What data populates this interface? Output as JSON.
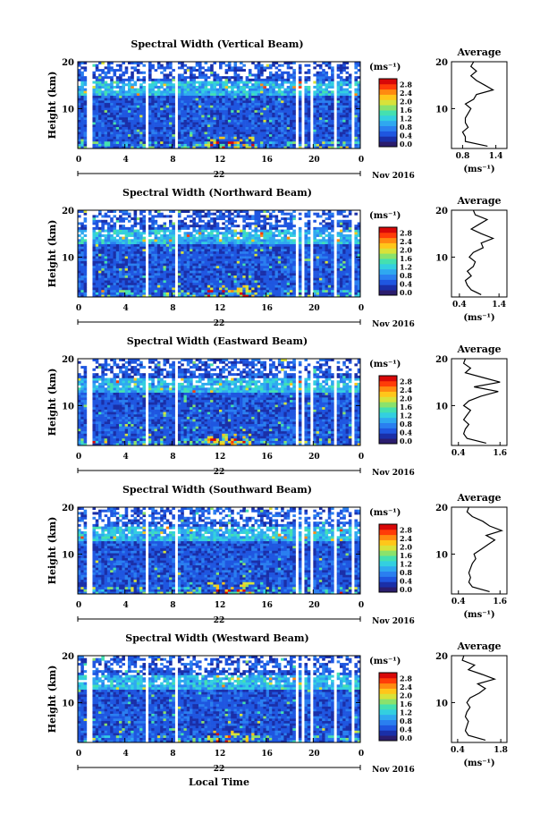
{
  "colors": {
    "background": "#ffffff",
    "colormap": [
      "#2b1d6e",
      "#1a2fa8",
      "#1f56e0",
      "#2a7ff0",
      "#2fa8f0",
      "#33cfe0",
      "#44e0b0",
      "#8ae26c",
      "#d8e23a",
      "#ffc61a",
      "#ff8a10",
      "#ff3c08",
      "#d80808"
    ]
  },
  "page": {
    "shared_x_label": "Local Time"
  },
  "chart_data": [
    {
      "type": "heatmap",
      "title": "Spectral Width (Vertical Beam)",
      "ylabel": "Height (km)",
      "xlabel": "22",
      "x_ticks": [
        "0",
        "4",
        "8",
        "12",
        "16",
        "20",
        "0"
      ],
      "y_ticks": [
        "20",
        "10"
      ],
      "xlim": [
        0,
        24
      ],
      "ylim": [
        1.5,
        20
      ],
      "date_label": "Nov 2016",
      "colorbar": {
        "unit": "(ms⁻¹)",
        "ticks": [
          "2.8",
          "2.4",
          "2.0",
          "1.6",
          "1.2",
          "0.8",
          "0.4",
          "0.0"
        ],
        "range": [
          0,
          3.2
        ]
      },
      "profile": {
        "title": "Average",
        "xlabel": "(ms⁻¹)",
        "x_ticks": [
          "0.8",
          "1.4"
        ],
        "xlim": [
          0.6,
          1.6
        ],
        "y_ticks": [
          "20",
          "10"
        ],
        "heights": [
          2,
          3,
          4,
          5,
          6,
          7,
          8,
          9,
          10,
          11,
          12,
          13,
          14,
          15,
          16,
          17,
          18,
          19,
          20
        ],
        "values": [
          1.25,
          0.85,
          0.85,
          0.8,
          0.9,
          0.85,
          0.85,
          0.9,
          0.95,
          0.85,
          1.0,
          1.05,
          1.35,
          1.2,
          1.05,
          0.95,
          1.05,
          0.95,
          1.0
        ]
      }
    },
    {
      "type": "heatmap",
      "title": "Spectral Width (Northward Beam)",
      "ylabel": "Height (km)",
      "xlabel": "22",
      "x_ticks": [
        "0",
        "4",
        "8",
        "12",
        "16",
        "20",
        "0"
      ],
      "y_ticks": [
        "20",
        "10"
      ],
      "xlim": [
        0,
        24
      ],
      "ylim": [
        1.5,
        20
      ],
      "date_label": "Nov 2016",
      "colorbar": {
        "unit": "(ms⁻¹)",
        "ticks": [
          "2.8",
          "2.4",
          "2.0",
          "1.6",
          "1.2",
          "0.8",
          "0.4",
          "0.0"
        ],
        "range": [
          0,
          3.2
        ]
      },
      "profile": {
        "title": "Average",
        "xlabel": "(ms⁻¹)",
        "x_ticks": [
          "0.4",
          "1.4"
        ],
        "xlim": [
          0.2,
          1.6
        ],
        "y_ticks": [
          "20",
          "10"
        ],
        "heights": [
          2,
          3,
          4,
          5,
          6,
          7,
          8,
          9,
          10,
          11,
          12,
          13,
          14,
          15,
          16,
          17,
          18,
          19,
          20
        ],
        "values": [
          0.95,
          0.7,
          0.6,
          0.55,
          0.7,
          0.6,
          0.75,
          0.8,
          0.65,
          0.75,
          1.0,
          0.95,
          1.25,
          0.95,
          0.7,
          0.9,
          1.1,
          0.8,
          0.75
        ]
      }
    },
    {
      "type": "heatmap",
      "title": "Spectral Width (Eastward Beam)",
      "ylabel": "Height (km)",
      "xlabel": "22",
      "x_ticks": [
        "0",
        "4",
        "8",
        "12",
        "16",
        "20",
        "0"
      ],
      "y_ticks": [
        "20",
        "10"
      ],
      "xlim": [
        0,
        24
      ],
      "ylim": [
        1.5,
        20
      ],
      "date_label": "Nov 2016",
      "colorbar": {
        "unit": "(ms⁻¹)",
        "ticks": [
          "2.8",
          "2.4",
          "2.0",
          "1.6",
          "1.2",
          "0.8",
          "0.4",
          "0.0"
        ],
        "range": [
          0,
          3.2
        ]
      },
      "profile": {
        "title": "Average",
        "xlabel": "",
        "x_ticks": [
          "0.4",
          "1.6"
        ],
        "xlim": [
          0.2,
          1.8
        ],
        "y_ticks": [
          "20",
          "10"
        ],
        "heights": [
          2,
          3,
          4,
          5,
          6,
          7,
          8,
          9,
          10,
          11,
          12,
          13,
          14,
          15,
          16,
          17,
          18,
          19,
          20
        ],
        "values": [
          1.2,
          0.65,
          0.55,
          0.6,
          0.7,
          0.55,
          0.65,
          0.75,
          0.55,
          0.7,
          1.05,
          1.55,
          0.85,
          1.6,
          1.1,
          0.6,
          0.75,
          0.55,
          0.6
        ]
      }
    },
    {
      "type": "heatmap",
      "title": "Spectral Width (Southward Beam)",
      "ylabel": "Height (km)",
      "xlabel": "22",
      "x_ticks": [
        "0",
        "4",
        "8",
        "12",
        "16",
        "20",
        "0"
      ],
      "y_ticks": [
        "20",
        "10"
      ],
      "xlim": [
        0,
        24
      ],
      "ylim": [
        1.5,
        20
      ],
      "date_label": "Nov 2016",
      "colorbar": {
        "unit": "(ms⁻¹)",
        "ticks": [
          "2.8",
          "2.4",
          "2.0",
          "1.6",
          "1.2",
          "0.8",
          "0.4",
          "0.0"
        ],
        "range": [
          0,
          3.2
        ]
      },
      "profile": {
        "title": "Average",
        "xlabel": "(ms⁻¹)",
        "x_ticks": [
          "0.4",
          "1.6"
        ],
        "xlim": [
          0.2,
          1.8
        ],
        "y_ticks": [
          "20",
          "10"
        ],
        "heights": [
          2,
          3,
          4,
          5,
          6,
          7,
          8,
          9,
          10,
          11,
          12,
          13,
          14,
          15,
          16,
          17,
          18,
          19,
          20
        ],
        "values": [
          1.3,
          0.8,
          0.7,
          0.75,
          0.7,
          0.75,
          0.8,
          0.9,
          0.85,
          1.05,
          1.25,
          1.45,
          1.2,
          1.65,
          1.3,
          1.1,
          0.8,
          0.65,
          0.7
        ]
      }
    },
    {
      "type": "heatmap",
      "title": "Spectral Width (Westward Beam)",
      "ylabel": "Height (km)",
      "xlabel": "22",
      "x_ticks": [
        "0",
        "4",
        "8",
        "12",
        "16",
        "20",
        "0"
      ],
      "y_ticks": [
        "20",
        "10"
      ],
      "xlim": [
        0,
        24
      ],
      "ylim": [
        1.5,
        20
      ],
      "date_label": "Nov 2016",
      "colorbar": {
        "unit": "(ms⁻¹)",
        "ticks": [
          "2.8",
          "2.4",
          "2.0",
          "1.6",
          "1.2",
          "0.8",
          "0.4",
          "0.0"
        ],
        "range": [
          0,
          3.2
        ]
      },
      "profile": {
        "title": "Average",
        "xlabel": "(ms⁻¹)",
        "x_ticks": [
          "0.4",
          "1.8"
        ],
        "xlim": [
          0.2,
          2.0
        ],
        "y_ticks": [
          "20",
          "10"
        ],
        "heights": [
          2,
          3,
          4,
          5,
          6,
          7,
          8,
          9,
          10,
          11,
          12,
          13,
          14,
          15,
          16,
          17,
          18,
          19,
          20
        ],
        "values": [
          1.3,
          0.75,
          0.65,
          0.7,
          0.75,
          0.65,
          0.7,
          0.8,
          0.7,
          0.8,
          1.1,
          1.3,
          1.05,
          1.6,
          1.2,
          0.75,
          0.95,
          0.55,
          0.6
        ]
      }
    }
  ]
}
